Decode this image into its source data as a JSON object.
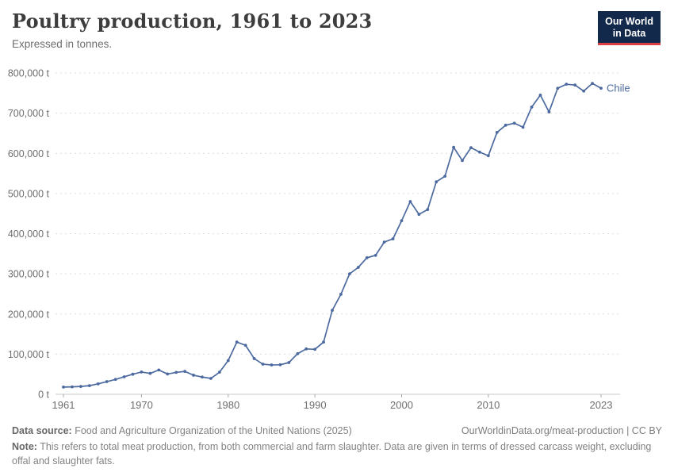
{
  "header": {
    "title": "Poultry production, 1961 to 2023",
    "subtitle": "Expressed in tonnes."
  },
  "logo": {
    "line1": "Our World",
    "line2": "in Data"
  },
  "chart_data": {
    "type": "line",
    "title": "Poultry production, 1961 to 2023",
    "unit": "t",
    "xlabel": "",
    "ylabel": "",
    "ylim": [
      0,
      800000
    ],
    "yticks": [
      0,
      100000,
      200000,
      300000,
      400000,
      500000,
      600000,
      700000,
      800000
    ],
    "xticks": [
      1961,
      1970,
      1980,
      1990,
      2000,
      2010,
      2023
    ],
    "grid": true,
    "legend_position": "end-of-line",
    "series": [
      {
        "name": "Chile",
        "color": "#4c6a9f",
        "x": [
          1961,
          1962,
          1963,
          1964,
          1965,
          1966,
          1967,
          1968,
          1969,
          1970,
          1971,
          1972,
          1973,
          1974,
          1975,
          1976,
          1977,
          1978,
          1979,
          1980,
          1981,
          1982,
          1983,
          1984,
          1985,
          1986,
          1987,
          1988,
          1989,
          1990,
          1991,
          1992,
          1993,
          1994,
          1995,
          1996,
          1997,
          1998,
          1999,
          2000,
          2001,
          2002,
          2003,
          2004,
          2005,
          2006,
          2007,
          2008,
          2009,
          2010,
          2011,
          2012,
          2013,
          2014,
          2015,
          2016,
          2017,
          2018,
          2019,
          2020,
          2021,
          2022,
          2023
        ],
        "y": [
          18000,
          18500,
          19500,
          21500,
          26000,
          31500,
          37000,
          43500,
          50000,
          55500,
          52000,
          60500,
          50500,
          54500,
          57000,
          47500,
          43000,
          39500,
          55000,
          84000,
          130000,
          122000,
          89000,
          75000,
          73000,
          73500,
          79000,
          101000,
          113000,
          112000,
          130000,
          209000,
          249000,
          300000,
          316000,
          340000,
          346000,
          379000,
          387000,
          432000,
          480000,
          448000,
          460000,
          529000,
          543000,
          615000,
          582000,
          614000,
          603000,
          594000,
          652000,
          670000,
          675000,
          665000,
          715000,
          745000,
          703000,
          762000,
          772000,
          770000,
          755000,
          774000,
          762000
        ]
      }
    ]
  },
  "colors": {
    "line": "#4c6a9f",
    "grid": "#dcdcdc",
    "axis": "#c9c9c9",
    "tick": "#a8a8a8",
    "axis_text": "#6e6e6e",
    "logo_bg": "#12294b",
    "logo_red": "#dc3e42"
  },
  "footer": {
    "datasource_label": "Data source:",
    "datasource_text": "Food and Agriculture Organization of the United Nations (2025)",
    "url": "OurWorldinData.org/meat-production | CC BY",
    "note_label": "Note:",
    "note_text": "This refers to total meat production, from both commercial and farm slaughter. Data are given in terms of dressed carcass weight, excluding offal and slaughter fats."
  }
}
